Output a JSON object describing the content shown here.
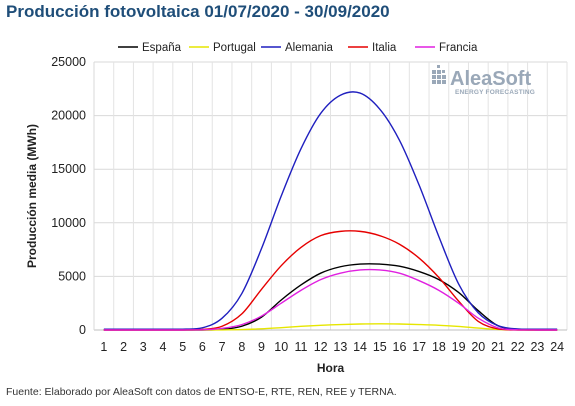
{
  "header": {
    "title": "Producción fotovoltaica 01/07/2020 - 30/09/2020"
  },
  "brand": {
    "name": "AleaSoft",
    "tagline": "ENERGY FORECASTING",
    "icon": "grid-dots-icon",
    "color": "#9aa8b8"
  },
  "footer": {
    "source": "Fuente: Elaborado por AleaSoft con datos de ENTSO-E, RTE, REN, REE y TERNA."
  },
  "chart_data": {
    "type": "line",
    "title": "Producción fotovoltaica 01/07/2020 - 30/09/2020",
    "xlabel": "Hora",
    "ylabel": "Producción media (MWh)",
    "xlim": [
      1,
      24
    ],
    "ylim": [
      0,
      25000
    ],
    "x_ticks": [
      1,
      2,
      3,
      4,
      5,
      6,
      7,
      8,
      9,
      10,
      11,
      12,
      13,
      14,
      15,
      16,
      17,
      18,
      19,
      20,
      21,
      22,
      23,
      24
    ],
    "y_ticks": [
      0,
      5000,
      10000,
      15000,
      20000,
      25000
    ],
    "y_tick_labels": [
      "0",
      "5000",
      "10000",
      "15000",
      "20000",
      "25000"
    ],
    "grid": {
      "x": true,
      "y": true
    },
    "legend_position": "top",
    "x": [
      1,
      2,
      3,
      4,
      5,
      6,
      7,
      8,
      9,
      10,
      11,
      12,
      13,
      14,
      15,
      16,
      17,
      18,
      19,
      20,
      21,
      22,
      23,
      24
    ],
    "series": [
      {
        "name": "España",
        "color": "#000000",
        "values": [
          0,
          0,
          0,
          0,
          0,
          0,
          50,
          350,
          1200,
          2800,
          4200,
          5300,
          5900,
          6150,
          6150,
          5950,
          5450,
          4700,
          3500,
          1800,
          400,
          50,
          0,
          0
        ]
      },
      {
        "name": "Portugal",
        "color": "#e6e600",
        "values": [
          0,
          0,
          0,
          0,
          0,
          0,
          10,
          40,
          110,
          220,
          340,
          440,
          510,
          560,
          580,
          560,
          510,
          440,
          330,
          180,
          50,
          10,
          0,
          0
        ]
      },
      {
        "name": "Alemania",
        "color": "#1f1fbf",
        "values": [
          80,
          80,
          80,
          80,
          80,
          200,
          1100,
          3400,
          7600,
          12500,
          16900,
          20200,
          21900,
          22100,
          20600,
          17700,
          13500,
          8700,
          4300,
          1600,
          400,
          100,
          80,
          80
        ]
      },
      {
        "name": "Italia",
        "color": "#e60000",
        "values": [
          0,
          0,
          0,
          0,
          0,
          50,
          350,
          1500,
          3800,
          6000,
          7700,
          8800,
          9200,
          9200,
          8800,
          8000,
          6700,
          4900,
          2700,
          800,
          100,
          0,
          0,
          0
        ]
      },
      {
        "name": "Francia",
        "color": "#e020e0",
        "values": [
          0,
          0,
          0,
          0,
          0,
          20,
          150,
          500,
          1300,
          2500,
          3700,
          4700,
          5300,
          5600,
          5600,
          5300,
          4600,
          3700,
          2500,
          1100,
          200,
          20,
          0,
          0
        ]
      }
    ]
  }
}
